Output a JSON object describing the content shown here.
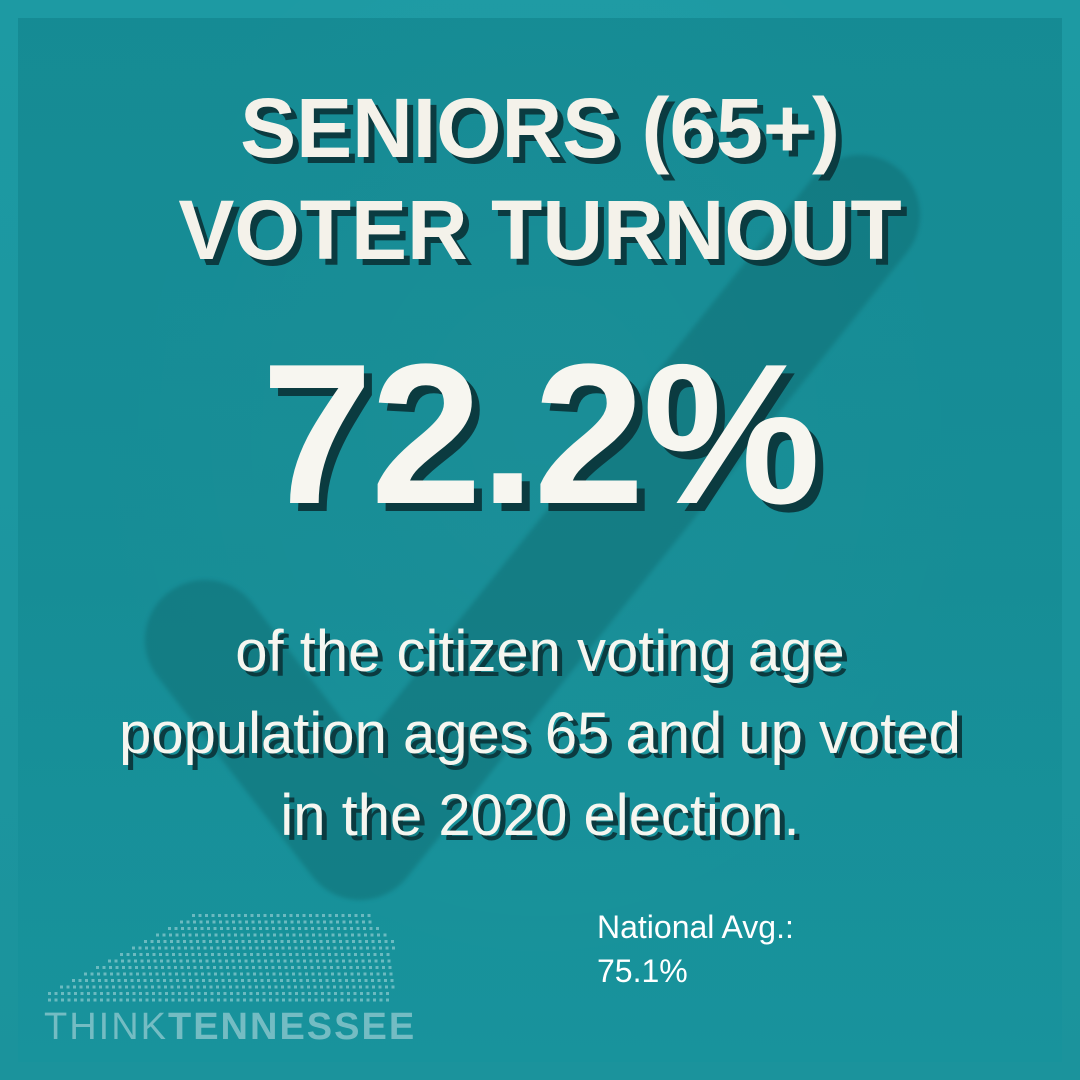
{
  "title": {
    "line1": "SENIORS (65+)",
    "line2": "VOTER TURNOUT"
  },
  "stat": {
    "value": "72.2%"
  },
  "description": {
    "line1": "of the citizen voting age",
    "line2": "population ages 65 and up voted",
    "line3": "in the 2020 election."
  },
  "national": {
    "label": "National Avg.:",
    "value": "75.1%"
  },
  "logo": {
    "word1": "THINK",
    "word2": "TENNESSEE",
    "icon": "tennessee-dot-map-icon"
  },
  "background_icon": "checkmark-icon",
  "colors": {
    "background": "#1a9aa3",
    "text": "#f4f2ea",
    "shadow": "#0b3b40",
    "logo": "#74bcc3"
  }
}
